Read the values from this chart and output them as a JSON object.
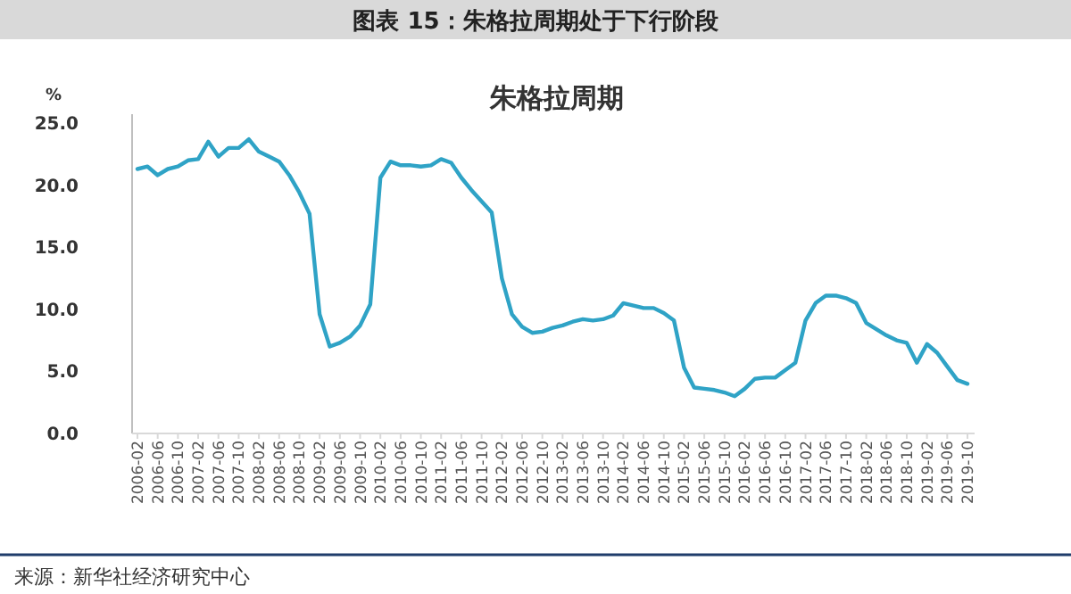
{
  "chart_data": {
    "type": "line",
    "title": "图表 15：朱格拉周期处于下行阶段",
    "subtitle": "朱格拉周期",
    "ylabel": "%",
    "annotations": [
      "来源：新华社经济研究中心"
    ],
    "categories": [
      "2006-02",
      null,
      "2006-06",
      null,
      "2006-10",
      null,
      "2007-02",
      null,
      "2007-06",
      null,
      "2007-10",
      null,
      "2008-02",
      null,
      "2008-06",
      null,
      "2008-10",
      null,
      "2009-02",
      null,
      "2009-06",
      null,
      "2009-10",
      null,
      "2010-02",
      null,
      "2010-06",
      null,
      "2010-10",
      null,
      "2011-02",
      null,
      "2011-06",
      null,
      "2011-10",
      null,
      "2012-02",
      null,
      "2012-06",
      null,
      "2012-10",
      null,
      "2013-02",
      null,
      "2013-06",
      null,
      "2013-10",
      null,
      "2014-02",
      null,
      "2014-06",
      null,
      "2014-10",
      null,
      "2015-02",
      null,
      "2015-06",
      null,
      "2015-10",
      null,
      "2016-02",
      null,
      "2016-06",
      null,
      "2016-10",
      null,
      "2017-02",
      null,
      "2017-06",
      null,
      "2017-10",
      null,
      "2018-02",
      null,
      "2018-06",
      null,
      "2018-10",
      null,
      "2019-02",
      null,
      "2019-06",
      null,
      "2019-10"
    ],
    "series": [
      {
        "color": "#2fa3c6",
        "values": [
          21.3,
          21.5,
          20.8,
          21.3,
          21.5,
          22.0,
          22.1,
          23.5,
          22.3,
          23.0,
          23.0,
          23.7,
          22.7,
          22.3,
          21.9,
          20.8,
          19.4,
          17.7,
          9.6,
          7.0,
          7.3,
          7.8,
          8.7,
          10.4,
          20.6,
          21.9,
          21.6,
          21.6,
          21.5,
          21.6,
          22.1,
          21.8,
          20.6,
          19.6,
          18.7,
          17.8,
          12.5,
          9.6,
          8.6,
          8.1,
          8.2,
          8.5,
          8.7,
          9.0,
          9.2,
          9.1,
          9.2,
          9.5,
          10.5,
          10.3,
          10.1,
          10.1,
          9.7,
          9.1,
          5.3,
          3.7,
          3.6,
          3.5,
          3.3,
          3.0,
          3.6,
          4.4,
          4.5,
          4.5,
          5.1,
          5.7,
          9.1,
          10.5,
          11.1,
          11.1,
          10.9,
          10.5,
          8.9,
          8.4,
          7.9,
          7.5,
          7.3,
          5.7,
          7.2,
          6.5,
          5.4,
          4.3,
          4.0
        ]
      }
    ],
    "ylim": [
      0,
      25
    ],
    "yticks": [
      {
        "value": 0,
        "label": "0.0"
      },
      {
        "value": 5,
        "label": "5.0"
      },
      {
        "value": 10,
        "label": "10.0"
      },
      {
        "value": 15,
        "label": "15.0"
      },
      {
        "value": 20,
        "label": "20.0"
      },
      {
        "value": 25,
        "label": "25.0"
      }
    ]
  }
}
